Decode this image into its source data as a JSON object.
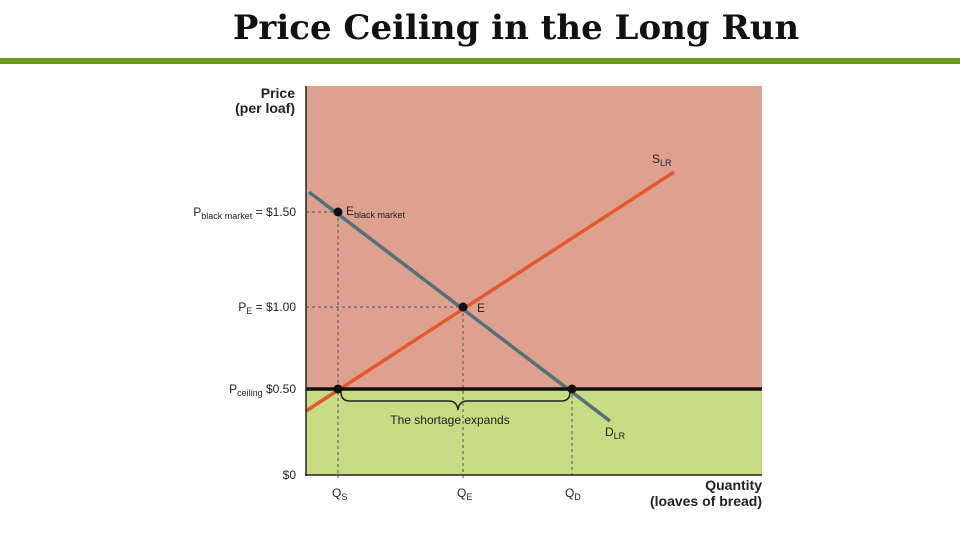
{
  "slide": {
    "title": "Price Ceiling in the Long Run"
  },
  "colors": {
    "rule": "#6a9a1f",
    "upper_region": "#dea18f",
    "lower_region": "#c8dc86",
    "supply": "#e2582a",
    "demand": "#54707c",
    "ceiling": "#111111"
  },
  "axes": {
    "y_title_1": "Price",
    "y_title_2": "(per loaf)",
    "x_title_1": "Quantity",
    "x_title_2": "(loaves of bread)"
  },
  "labels": {
    "p_black_main": "P",
    "p_black_sub": "black market",
    "p_black_value": " = $1.50",
    "pe_main": "P",
    "pe_sub": "E",
    "pe_value": " = $1.00",
    "pceil_main": "P",
    "pceil_sub": "ceiling",
    "pceil_value": " $0.50",
    "zero": "$0",
    "qs_main": "Q",
    "qs_sub": "S",
    "qe_main": "Q",
    "qe_sub": "E",
    "qd_main": "Q",
    "qd_sub": "D",
    "s_main": "S",
    "s_sub": "LR",
    "d_main": "D",
    "d_sub": "LR",
    "e_label": "E",
    "eb_main": "E",
    "eb_sub": "black market",
    "shortage": "The shortage expands"
  },
  "values": {
    "p_black_market": 1.5,
    "p_equilibrium": 1.0,
    "p_ceiling": 0.5
  }
}
